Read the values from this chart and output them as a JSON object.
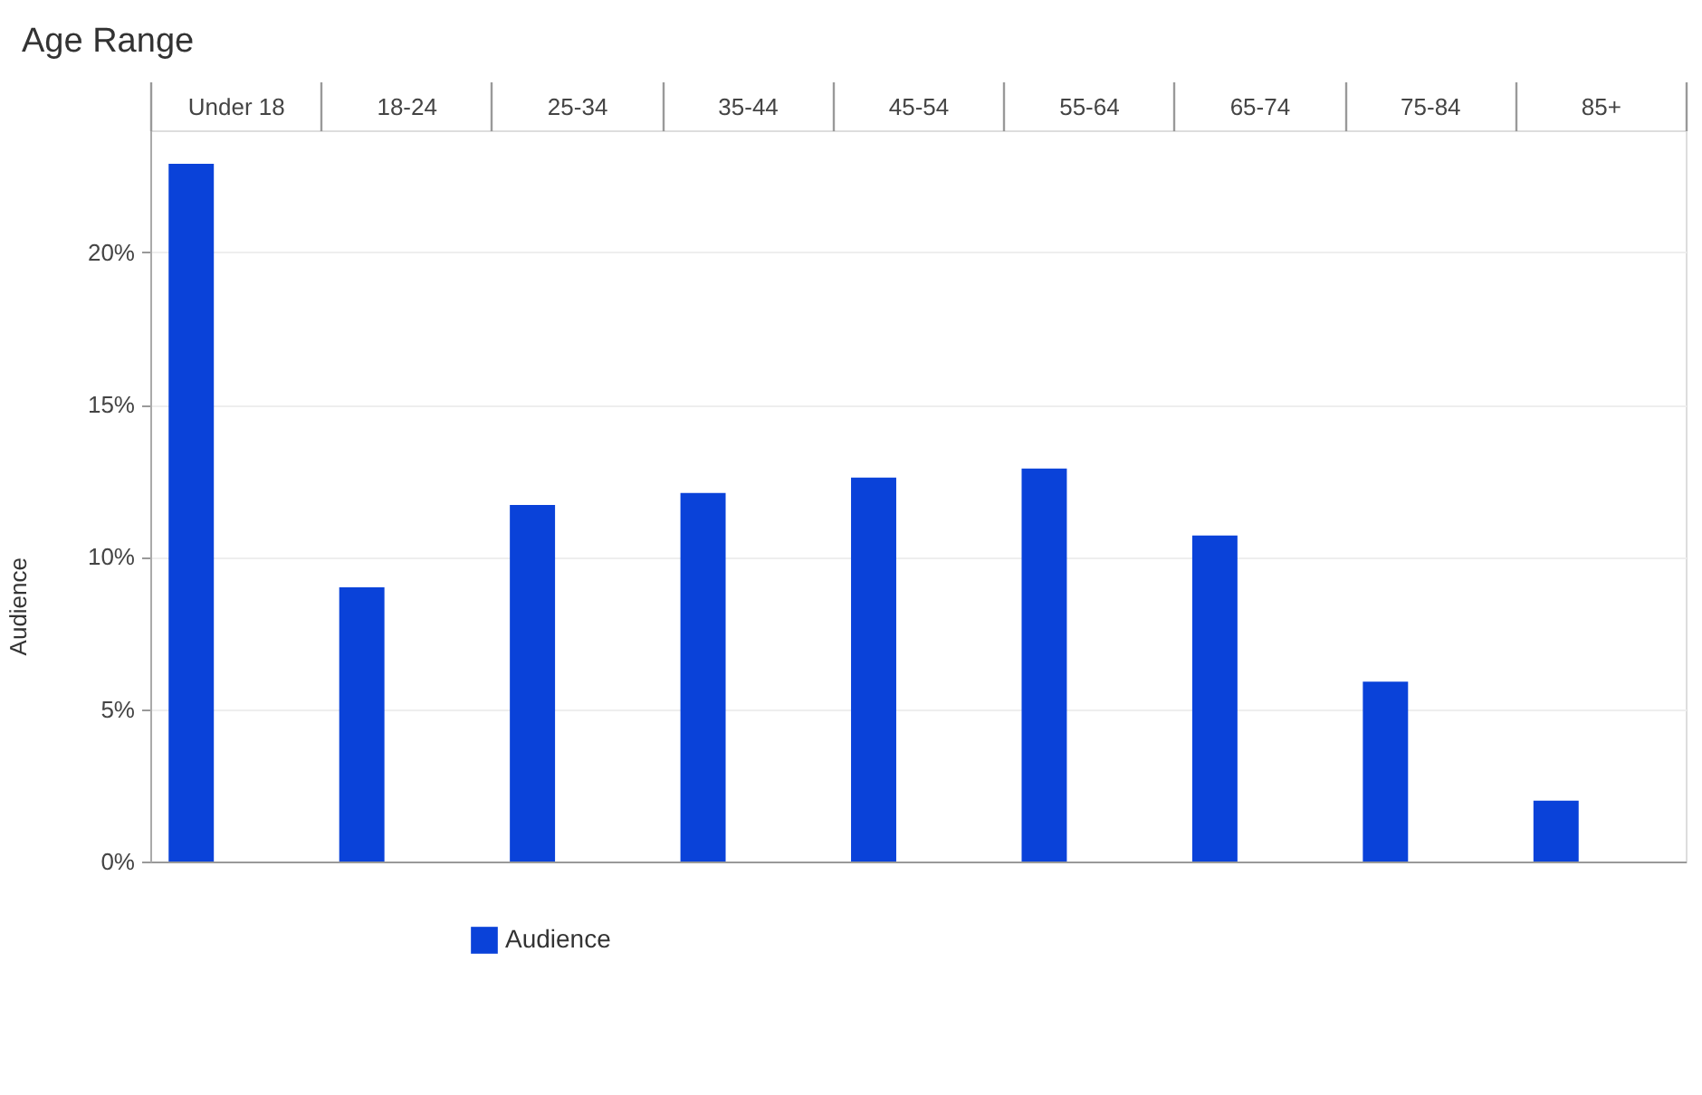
{
  "chart_data": {
    "type": "bar",
    "title": "Age Range",
    "ylabel": "Audience",
    "categories": [
      "Under 18",
      "18-24",
      "25-34",
      "35-44",
      "45-54",
      "55-64",
      "65-74",
      "75-84",
      "85+"
    ],
    "series": [
      {
        "name": "Audience",
        "color": "#0a42d9",
        "values": [
          22.9,
          9.0,
          11.7,
          12.1,
          12.6,
          12.9,
          10.7,
          5.9,
          2.0
        ]
      }
    ],
    "ylim": [
      0,
      24
    ],
    "yticks": [
      {
        "value": 0,
        "label": "0%"
      },
      {
        "value": 5,
        "label": "5%"
      },
      {
        "value": 10,
        "label": "10%"
      },
      {
        "value": 15,
        "label": "15%"
      },
      {
        "value": 20,
        "label": "20%"
      }
    ],
    "grid": "y",
    "legend": "bottom"
  }
}
